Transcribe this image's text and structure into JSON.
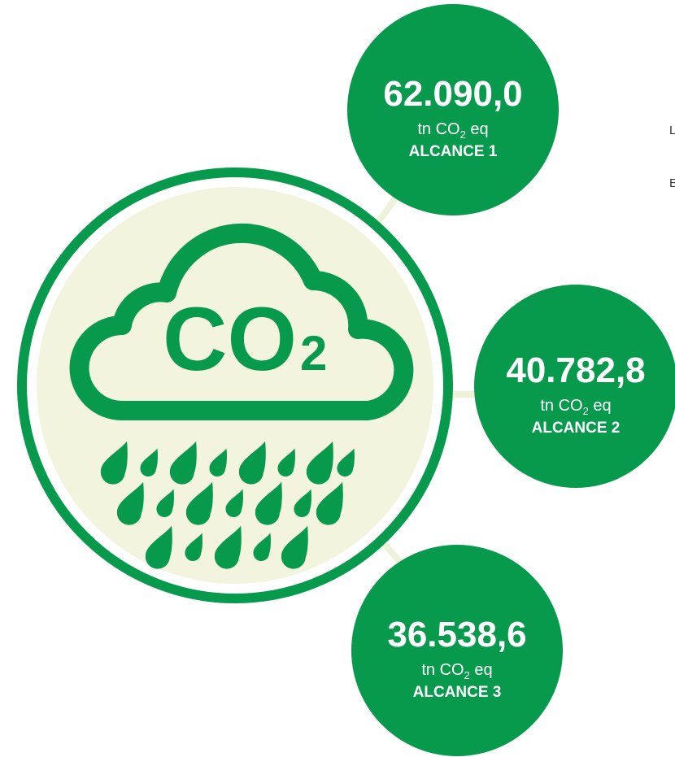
{
  "icon_label": {
    "text": "CO",
    "sub": "2"
  },
  "scopes": [
    {
      "value": "62.090,0",
      "unit": {
        "before": "tn CO",
        "sub": "2",
        "after": " eq"
      },
      "label": "ALCANCE 1"
    },
    {
      "value": "40.782,8",
      "unit": {
        "before": "tn CO",
        "sub": "2",
        "after": " eq"
      },
      "label": "ALCANCE 2"
    },
    {
      "value": "36.538,6",
      "unit": {
        "before": "tn CO",
        "sub": "2",
        "after": " eq"
      },
      "label": "ALCANCE 3"
    }
  ],
  "edge_text": [
    "L",
    "E"
  ]
}
